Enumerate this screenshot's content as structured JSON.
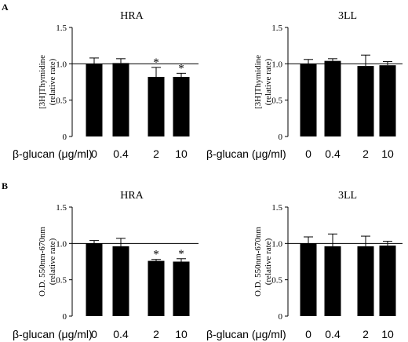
{
  "figure": {
    "panel_labels": [
      "A",
      "B"
    ],
    "xaxis_prefix": "β-glucan (μg/ml)"
  },
  "chart_data": [
    {
      "type": "bar",
      "panel": "A",
      "title": "HRA",
      "ylabel_lines": [
        "[3H]Thymidine",
        "(relative rate)"
      ],
      "categories": [
        "0",
        "0.4",
        "2",
        "10"
      ],
      "values": [
        1.0,
        1.01,
        0.82,
        0.82
      ],
      "errors": [
        0.08,
        0.06,
        0.13,
        0.05
      ],
      "annotations": [
        "",
        "",
        "*",
        "*"
      ],
      "ylim": [
        0,
        1.5
      ],
      "yticks": [
        "0",
        "0.5",
        "1.0",
        "1.5"
      ],
      "reference_line": 1.0
    },
    {
      "type": "bar",
      "panel": "A",
      "title": "3LL",
      "ylabel_lines": [
        "[3H]Thymidine",
        "(relative rate)"
      ],
      "categories": [
        "0",
        "0.4",
        "2",
        "10"
      ],
      "values": [
        1.0,
        1.04,
        0.97,
        0.98
      ],
      "errors": [
        0.06,
        0.03,
        0.15,
        0.05
      ],
      "annotations": [
        "",
        "",
        "",
        ""
      ],
      "ylim": [
        0,
        1.5
      ],
      "yticks": [
        "0",
        "0.5",
        "1.0",
        "1.5"
      ],
      "reference_line": 1.0
    },
    {
      "type": "bar",
      "panel": "B",
      "title": "HRA",
      "ylabel_lines": [
        "O.D. 550nm-670nm",
        "(relative rate)"
      ],
      "categories": [
        "0",
        "0.4",
        "2",
        "10"
      ],
      "values": [
        1.0,
        0.96,
        0.76,
        0.75
      ],
      "errors": [
        0.04,
        0.11,
        0.02,
        0.04
      ],
      "annotations": [
        "",
        "",
        "*",
        "*"
      ],
      "ylim": [
        0,
        1.5
      ],
      "yticks": [
        "0",
        "0.5",
        "1.0",
        "1.5"
      ],
      "reference_line": 1.0
    },
    {
      "type": "bar",
      "panel": "B",
      "title": "3LL",
      "ylabel_lines": [
        "O.D. 550nm-670nm",
        "(relative rate)"
      ],
      "categories": [
        "0",
        "0.4",
        "2",
        "10"
      ],
      "values": [
        1.0,
        0.96,
        0.96,
        0.97
      ],
      "errors": [
        0.09,
        0.17,
        0.14,
        0.06
      ],
      "annotations": [
        "",
        "",
        "",
        ""
      ],
      "ylim": [
        0,
        1.5
      ],
      "yticks": [
        "0",
        "0.5",
        "1.0",
        "1.5"
      ],
      "reference_line": 1.0
    }
  ]
}
